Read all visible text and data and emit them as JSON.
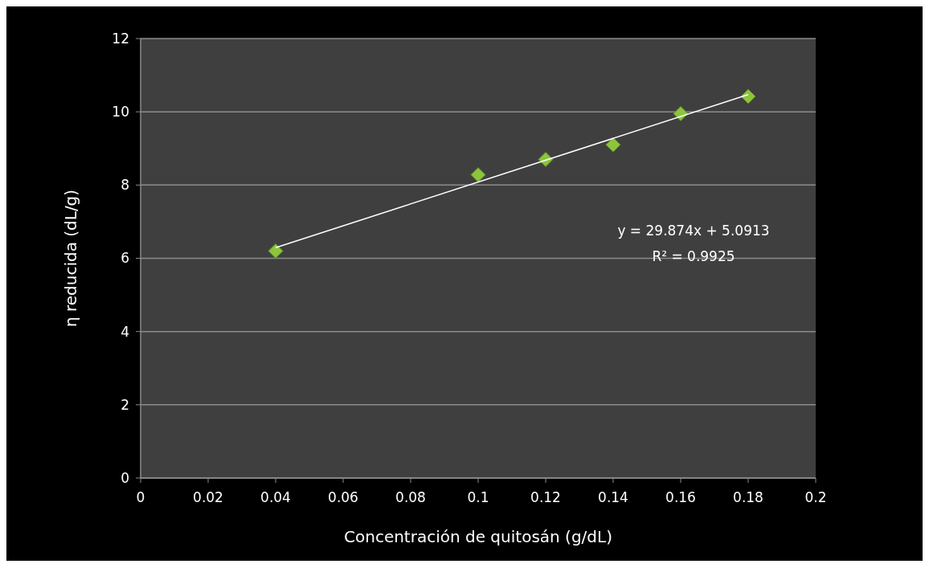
{
  "chart_data": {
    "type": "scatter",
    "xlabel": "Concentración de quitosán (g/dL)",
    "ylabel": "η reducida (dL/g)",
    "x": [
      0.04,
      0.1,
      0.12,
      0.14,
      0.16,
      0.18
    ],
    "series": [
      {
        "color": "#8cc43c",
        "marker": "diamond",
        "values": [
          6.2,
          8.28,
          8.7,
          9.1,
          9.95,
          10.42
        ]
      },
      {
        "type": "line",
        "color": "#ffffff",
        "marker": "none",
        "x": [
          0.04,
          0.18
        ],
        "values": [
          6.29,
          10.47
        ]
      }
    ],
    "xlim": [
      0,
      0.2
    ],
    "xticks": [
      0,
      0.02,
      0.04,
      0.06,
      0.08,
      0.1,
      0.12,
      0.14,
      0.16,
      0.18,
      0.2
    ],
    "ylim": [
      0,
      12
    ],
    "yticks": [
      0,
      2,
      4,
      6,
      8,
      10,
      12
    ],
    "grid": "y",
    "annotations": [
      "y = 29.874x + 5.0913",
      "R² = 0.9925"
    ]
  }
}
